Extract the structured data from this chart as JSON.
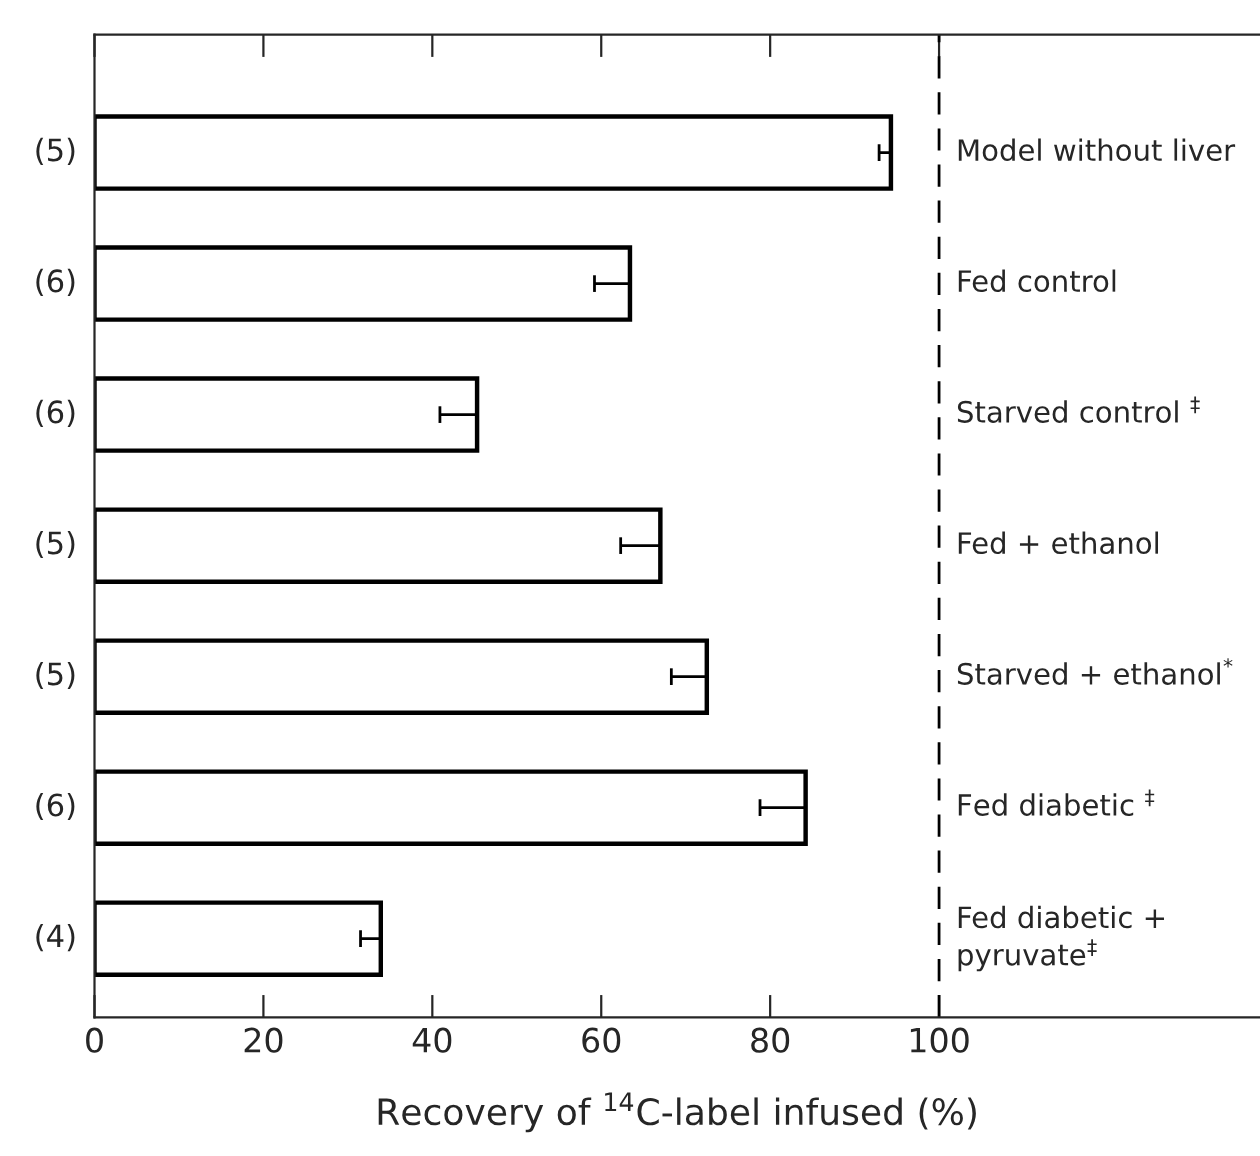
{
  "chart_data": {
    "type": "bar",
    "orientation": "horizontal",
    "xlabel": "Recovery of $^{14}$C-label infused (%)",
    "categories": [
      "Model without liver",
      "Fed control",
      "Starved control $^{‡}$",
      "Fed + ethanol",
      "Starved + ethanol$^{*}$",
      "Fed diabetic $^{‡}$",
      "Fed diabetic +\npyruvate$^{‡}$"
    ],
    "values": [
      94.3,
      63.4,
      45.3,
      67.0,
      72.5,
      84.2,
      33.9
    ],
    "errors": [
      [
        92.9,
        94.3
      ],
      [
        59.2,
        63.4
      ],
      [
        40.9,
        45.3
      ],
      [
        62.3,
        67.0
      ],
      [
        68.3,
        72.5
      ],
      [
        78.8,
        84.2
      ],
      [
        31.5,
        33.9
      ]
    ],
    "color": "#ffffff",
    "annotations": [
      "(5)",
      "(6)",
      "(6)",
      "(5)",
      "(5)",
      "(6)",
      "(4)"
    ],
    "ref_lines": [
      {
        "axis": "x",
        "value": 100,
        "label": null,
        "line_style": "dashed",
        "color": "#000000"
      }
    ],
    "xlim": [
      0,
      138
    ],
    "xticks": [
      0,
      20,
      40,
      60,
      80,
      100
    ],
    "grid": false,
    "legend": false
  }
}
